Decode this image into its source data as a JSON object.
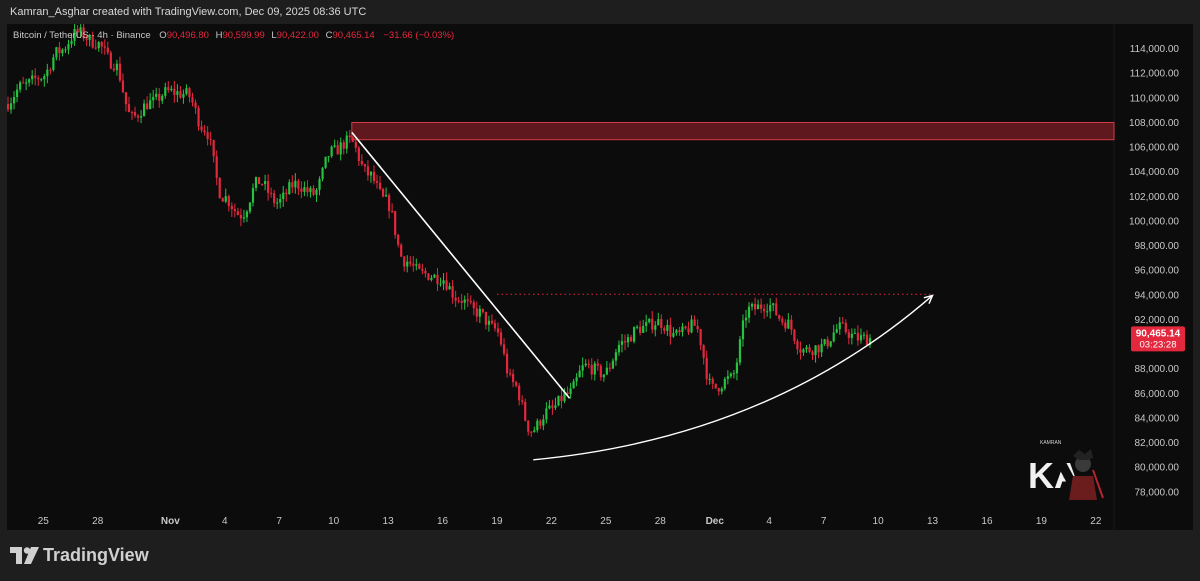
{
  "header": {
    "caption": "Kamran_Asghar created with TradingView.com, Dec 09, 2025 08:36 UTC"
  },
  "legend": {
    "symbol": "Bitcoin / TetherUS · 4h · Binance",
    "open_label": "O",
    "open": "90,496.80",
    "high_label": "H",
    "high": "90,599.99",
    "low_label": "L",
    "low": "90,422.00",
    "close_label": "C",
    "close": "90,465.14",
    "change": "−31.66 (−0.03%)"
  },
  "price_tag": {
    "price": "90,465.14",
    "countdown": "03:23:28"
  },
  "footer": {
    "brand": "TradingView"
  },
  "watermark": {
    "initials": "KA",
    "small_text": "KAMRAN"
  },
  "colors": {
    "bull": "#26c341",
    "bear": "#e3283e",
    "background": "#0c0c0c",
    "zone_fill": "#7a1c24",
    "zone_stroke": "#d23c48",
    "trendline": "#ffffff",
    "resistance_dotted": "#e3283e",
    "axis_text": "#c8c8c8"
  },
  "chart_data": {
    "type": "candlestick",
    "title": "Bitcoin / TetherUS · 4h · Binance",
    "xlabel": "",
    "ylabel": "",
    "ylim": [
      76600,
      116000
    ],
    "y_ticks": [
      "78,000.00",
      "80,000.00",
      "82,000.00",
      "84,000.00",
      "86,000.00",
      "88,000.00",
      "90,000.00",
      "92,000.00",
      "94,000.00",
      "96,000.00",
      "98,000.00",
      "100,000.00",
      "102,000.00",
      "104,000.00",
      "106,000.00",
      "108,000.00",
      "110,000.00",
      "112,000.00",
      "114,000.00"
    ],
    "y_tick_values": [
      78000,
      80000,
      82000,
      84000,
      86000,
      88000,
      90000,
      92000,
      94000,
      96000,
      98000,
      100000,
      102000,
      104000,
      106000,
      108000,
      110000,
      112000,
      114000
    ],
    "x_labels": [
      "25",
      "28",
      "Nov",
      "4",
      "7",
      "10",
      "13",
      "16",
      "19",
      "22",
      "25",
      "28",
      "Dec",
      "4",
      "7",
      "10",
      "13",
      "16",
      "19",
      "22"
    ],
    "x_label_dates": [
      "2025-10-25",
      "2025-10-28",
      "2025-11-01",
      "2025-11-04",
      "2025-11-07",
      "2025-11-10",
      "2025-11-13",
      "2025-11-16",
      "2025-11-19",
      "2025-11-22",
      "2025-11-25",
      "2025-11-28",
      "2025-12-01",
      "2025-12-04",
      "2025-12-07",
      "2025-12-10",
      "2025-12-13",
      "2025-12-16",
      "2025-12-19",
      "2025-12-22"
    ],
    "x_start": "2025-10-23",
    "x_end": "2025-12-23",
    "bars_per_day": 6,
    "last_bar": "2025-12-09",
    "anchors": [
      [
        "2025-10-23",
        109500
      ],
      [
        "2025-10-24",
        111000
      ],
      [
        "2025-10-25",
        111700
      ],
      [
        "2025-10-26",
        113800
      ],
      [
        "2025-10-27",
        115300
      ],
      [
        "2025-10-28",
        114500
      ],
      [
        "2025-10-29",
        112800
      ],
      [
        "2025-10-30",
        108400
      ],
      [
        "2025-10-31",
        109600
      ],
      [
        "2025-11-01",
        110500
      ],
      [
        "2025-11-02",
        110300
      ],
      [
        "2025-11-03",
        107500
      ],
      [
        "2025-11-04",
        102000
      ],
      [
        "2025-11-05",
        100500
      ],
      [
        "2025-11-06",
        103200
      ],
      [
        "2025-11-07",
        101500
      ],
      [
        "2025-11-08",
        103000
      ],
      [
        "2025-11-09",
        102200
      ],
      [
        "2025-11-10",
        105600
      ],
      [
        "2025-11-11",
        106500
      ],
      [
        "2025-11-12",
        103800
      ],
      [
        "2025-11-13",
        101600
      ],
      [
        "2025-11-14",
        96800
      ],
      [
        "2025-11-15",
        95700
      ],
      [
        "2025-11-16",
        95400
      ],
      [
        "2025-11-17",
        93700
      ],
      [
        "2025-11-18",
        92600
      ],
      [
        "2025-11-19",
        91200
      ],
      [
        "2025-11-20",
        86800
      ],
      [
        "2025-11-21",
        83000
      ],
      [
        "2025-11-22",
        84600
      ],
      [
        "2025-11-23",
        85900
      ],
      [
        "2025-11-24",
        88200
      ],
      [
        "2025-11-25",
        87600
      ],
      [
        "2025-11-26",
        90100
      ],
      [
        "2025-11-27",
        91300
      ],
      [
        "2025-11-28",
        91800
      ],
      [
        "2025-11-29",
        90700
      ],
      [
        "2025-11-30",
        91500
      ],
      [
        "2025-12-01",
        86400
      ],
      [
        "2025-12-02",
        87200
      ],
      [
        "2025-12-03",
        92800
      ],
      [
        "2025-12-04",
        93200
      ],
      [
        "2025-12-05",
        91800
      ],
      [
        "2025-12-06",
        89500
      ],
      [
        "2025-12-07",
        89800
      ],
      [
        "2025-12-08",
        91300
      ],
      [
        "2025-12-09",
        90465
      ]
    ],
    "resistance_zone": {
      "x_start": "2025-11-11",
      "x_end": "2025-12-23",
      "y_low": 106600,
      "y_high": 108000
    },
    "trendline": {
      "start": [
        "2025-11-11",
        107200
      ],
      "end": [
        "2025-11-23",
        85600
      ]
    },
    "dotted_level": {
      "x_start": "2025-11-19",
      "x_end": "2025-12-13",
      "y": 94050
    },
    "curve": {
      "start": [
        "2025-11-21",
        80600
      ],
      "control": [
        "2025-12-04",
        82400
      ],
      "end": [
        "2025-12-13",
        93950
      ]
    }
  }
}
